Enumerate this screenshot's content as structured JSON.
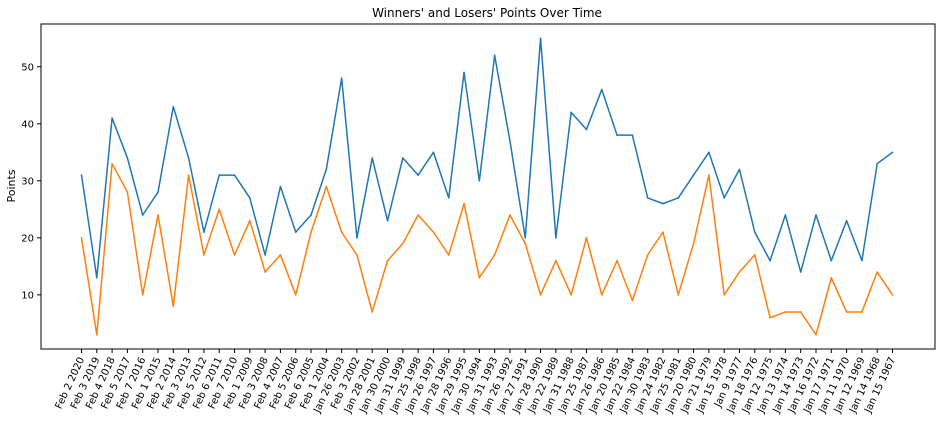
{
  "chart_data": {
    "type": "line",
    "title": "Winners' and Losers' Points Over Time",
    "xlabel": "",
    "ylabel": "Points",
    "ylim": [
      0.5,
      57.5
    ],
    "yticks": [
      10,
      20,
      30,
      40,
      50
    ],
    "grid": false,
    "legend": "none",
    "categories": [
      "Feb 2 2020",
      "Feb 3 2019",
      "Feb 4 2018",
      "Feb 5 2017",
      "Feb 7 2016",
      "Feb 1 2015",
      "Feb 2 2014",
      "Feb 3 2013",
      "Feb 5 2012",
      "Feb 6 2011",
      "Feb 7 2010",
      "Feb 1 2009",
      "Feb 3 2008",
      "Feb 4 2007",
      "Feb 5 2006",
      "Feb 6 2005",
      "Feb 1 2004",
      "Jan 26 2003",
      "Feb 3 2002",
      "Jan 28 2001",
      "Jan 30 2000",
      "Jan 31 1999",
      "Jan 25 1998",
      "Jan 26 1997",
      "Jan 28 1996",
      "Jan 29 1995",
      "Jan 30 1994",
      "Jan 31 1993",
      "Jan 26 1992",
      "Jan 27 1991",
      "Jan 28 1990",
      "Jan 22 1989",
      "Jan 31 1988",
      "Jan 25 1987",
      "Jan 26 1986",
      "Jan 20 1985",
      "Jan 22 1984",
      "Jan 30 1983",
      "Jan 24 1982",
      "Jan 25 1981",
      "Jan 20 1980",
      "Jan 21 1979",
      "Jan 15 1978",
      "Jan 9 1977",
      "Jan 18 1976",
      "Jan 12 1975",
      "Jan 13 1974",
      "Jan 14 1973",
      "Jan 16 1972",
      "Jan 17 1971",
      "Jan 11 1970",
      "Jan 12 1969",
      "Jan 14 1968",
      "Jan 15 1967"
    ],
    "series": [
      {
        "color": "#1f77b4",
        "values": [
          31,
          13,
          41,
          34,
          24,
          28,
          43,
          34,
          21,
          31,
          31,
          27,
          17,
          29,
          21,
          24,
          32,
          48,
          20,
          34,
          23,
          34,
          31,
          35,
          27,
          49,
          30,
          52,
          37,
          20,
          55,
          20,
          42,
          39,
          46,
          38,
          38,
          27,
          26,
          27,
          31,
          35,
          27,
          32,
          21,
          16,
          24,
          14,
          24,
          16,
          23,
          16,
          33,
          35
        ]
      },
      {
        "color": "#ff7f0e",
        "values": [
          20,
          3,
          33,
          28,
          10,
          24,
          8,
          31,
          17,
          25,
          17,
          23,
          14,
          17,
          10,
          21,
          29,
          21,
          17,
          7,
          16,
          19,
          24,
          21,
          17,
          26,
          13,
          17,
          24,
          19,
          10,
          16,
          10,
          20,
          10,
          16,
          9,
          17,
          21,
          10,
          19,
          31,
          10,
          14,
          17,
          6,
          7,
          7,
          3,
          13,
          7,
          7,
          14,
          10
        ]
      }
    ]
  }
}
